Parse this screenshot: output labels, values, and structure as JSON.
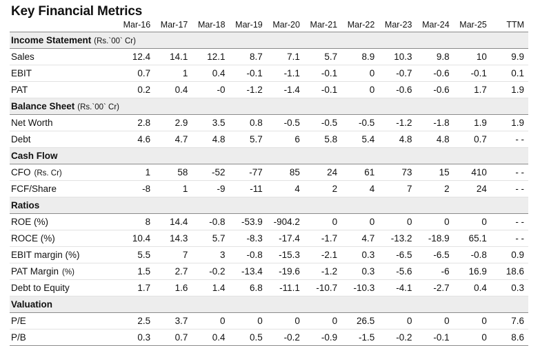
{
  "title": "Key Financial Metrics",
  "columns": [
    "Mar-16",
    "Mar-17",
    "Mar-18",
    "Mar-19",
    "Mar-20",
    "Mar-21",
    "Mar-22",
    "Mar-23",
    "Mar-24",
    "Mar-25",
    "TTM"
  ],
  "sections": [
    {
      "name": "Income Statement",
      "unit": "(Rs.`00` Cr)",
      "rows": [
        {
          "label": "Sales",
          "values": [
            "12.4",
            "14.1",
            "12.1",
            "8.7",
            "7.1",
            "5.7",
            "8.9",
            "10.3",
            "9.8",
            "10",
            "9.9"
          ]
        },
        {
          "label": "EBIT",
          "values": [
            "0.7",
            "1",
            "0.4",
            "-0.1",
            "-1.1",
            "-0.1",
            "0",
            "-0.7",
            "-0.6",
            "-0.1",
            "0.1"
          ]
        },
        {
          "label": "PAT",
          "values": [
            "0.2",
            "0.4",
            "-0",
            "-1.2",
            "-1.4",
            "-0.1",
            "0",
            "-0.6",
            "-0.6",
            "1.7",
            "1.9"
          ]
        }
      ]
    },
    {
      "name": "Balance Sheet",
      "unit": "(Rs.`00` Cr)",
      "rows": [
        {
          "label": "Net Worth",
          "values": [
            "2.8",
            "2.9",
            "3.5",
            "0.8",
            "-0.5",
            "-0.5",
            "-0.5",
            "-1.2",
            "-1.8",
            "1.9",
            "1.9"
          ]
        },
        {
          "label": "Debt",
          "values": [
            "4.6",
            "4.7",
            "4.8",
            "5.7",
            "6",
            "5.8",
            "5.4",
            "4.8",
            "4.8",
            "0.7",
            "- -"
          ]
        }
      ]
    },
    {
      "name": "Cash Flow",
      "unit": "",
      "rows": [
        {
          "label": "CFO",
          "label_unit": "(Rs. Cr)",
          "values": [
            "1",
            "58",
            "-52",
            "-77",
            "85",
            "24",
            "61",
            "73",
            "15",
            "410",
            "- -"
          ]
        },
        {
          "label": "FCF/Share",
          "values": [
            "-8",
            "1",
            "-9",
            "-11",
            "4",
            "2",
            "4",
            "7",
            "2",
            "24",
            "- -"
          ]
        }
      ]
    },
    {
      "name": "Ratios",
      "unit": "",
      "rows": [
        {
          "label": "ROE (%)",
          "values": [
            "8",
            "14.4",
            "-0.8",
            "-53.9",
            "-904.2",
            "0",
            "0",
            "0",
            "0",
            "0",
            "- -"
          ]
        },
        {
          "label": "ROCE (%)",
          "values": [
            "10.4",
            "14.3",
            "5.7",
            "-8.3",
            "-17.4",
            "-1.7",
            "4.7",
            "-13.2",
            "-18.9",
            "65.1",
            "- -"
          ]
        },
        {
          "label": "EBIT margin (%)",
          "values": [
            "5.5",
            "7",
            "3",
            "-0.8",
            "-15.3",
            "-2.1",
            "0.3",
            "-6.5",
            "-6.5",
            "-0.8",
            "0.9"
          ]
        },
        {
          "label": "PAT Margin",
          "label_unit": "(%)",
          "values": [
            "1.5",
            "2.7",
            "-0.2",
            "-13.4",
            "-19.6",
            "-1.2",
            "0.3",
            "-5.6",
            "-6",
            "16.9",
            "18.6"
          ]
        },
        {
          "label": "Debt to Equity",
          "values": [
            "1.7",
            "1.6",
            "1.4",
            "6.8",
            "-11.1",
            "-10.7",
            "-10.3",
            "-4.1",
            "-2.7",
            "0.4",
            "0.3"
          ]
        }
      ]
    },
    {
      "name": "Valuation",
      "unit": "",
      "rows": [
        {
          "label": "P/E",
          "values": [
            "2.5",
            "3.7",
            "0",
            "0",
            "0",
            "0",
            "26.5",
            "0",
            "0",
            "0",
            "7.6"
          ]
        },
        {
          "label": "P/B",
          "values": [
            "0.3",
            "0.7",
            "0.4",
            "0.5",
            "-0.2",
            "-0.9",
            "-1.5",
            "-0.2",
            "-0.1",
            "0",
            "8.6"
          ]
        }
      ]
    }
  ]
}
